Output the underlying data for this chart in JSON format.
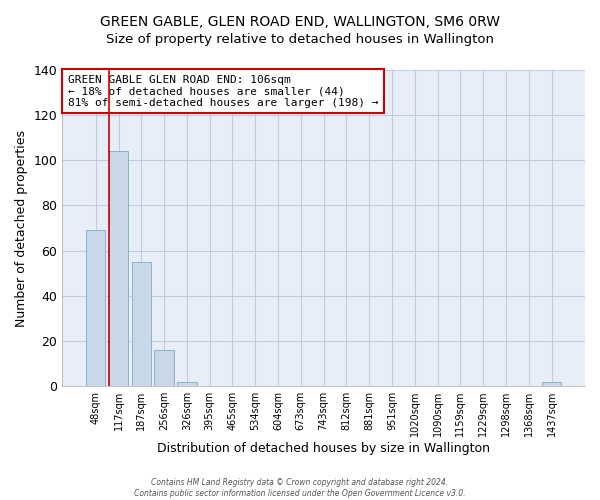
{
  "title": "GREEN GABLE, GLEN ROAD END, WALLINGTON, SM6 0RW",
  "subtitle": "Size of property relative to detached houses in Wallington",
  "xlabel": "Distribution of detached houses by size in Wallington",
  "ylabel": "Number of detached properties",
  "bar_labels": [
    "48sqm",
    "117sqm",
    "187sqm",
    "256sqm",
    "326sqm",
    "395sqm",
    "465sqm",
    "534sqm",
    "604sqm",
    "673sqm",
    "743sqm",
    "812sqm",
    "881sqm",
    "951sqm",
    "1020sqm",
    "1090sqm",
    "1159sqm",
    "1229sqm",
    "1298sqm",
    "1368sqm",
    "1437sqm"
  ],
  "bar_values": [
    69,
    104,
    55,
    16,
    2,
    0,
    0,
    0,
    0,
    0,
    0,
    0,
    0,
    0,
    0,
    0,
    0,
    0,
    0,
    0,
    2
  ],
  "bar_fill_color": "#c8d8e8",
  "bar_edge_color": "#7baac8",
  "red_line_bar_index": 1,
  "ylim": [
    0,
    140
  ],
  "yticks": [
    0,
    20,
    40,
    60,
    80,
    100,
    120,
    140
  ],
  "annotation_title": "GREEN GABLE GLEN ROAD END: 106sqm",
  "annotation_line1": "← 18% of detached houses are smaller (44)",
  "annotation_line2": "81% of semi-detached houses are larger (198) →",
  "annotation_box_facecolor": "#ffffff",
  "annotation_box_edgecolor": "#cc0000",
  "footer_line1": "Contains HM Land Registry data © Crown copyright and database right 2024.",
  "footer_line2": "Contains public sector information licensed under the Open Government Licence v3.0.",
  "background_color": "#ffffff",
  "plot_bg_color": "#e8eef8",
  "grid_color": "#c0cce0",
  "title_fontsize": 10,
  "subtitle_fontsize": 10
}
